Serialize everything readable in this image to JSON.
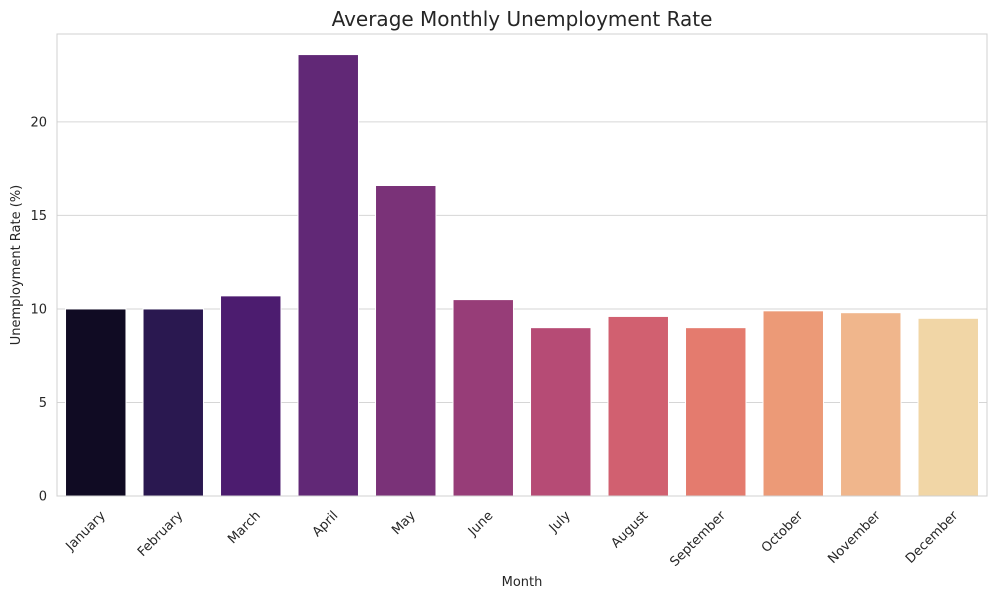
{
  "chart_data": {
    "type": "bar",
    "title": "Average Monthly Unemployment Rate",
    "xlabel": "Month",
    "ylabel": "Unemployment Rate (%)",
    "categories": [
      "January",
      "February",
      "March",
      "April",
      "May",
      "June",
      "July",
      "August",
      "September",
      "October",
      "November",
      "December"
    ],
    "values": [
      10.0,
      10.0,
      10.7,
      23.6,
      16.6,
      10.5,
      9.0,
      9.6,
      9.0,
      9.9,
      9.8,
      9.5
    ],
    "colors": [
      "#100b23",
      "#2a1850",
      "#4c1c6f",
      "#612876",
      "#7a3278",
      "#973d78",
      "#b64b75",
      "#d16070",
      "#e47b6e",
      "#ec9a77",
      "#f0b68c",
      "#f1d6a6"
    ],
    "ylim": [
      0,
      24.7
    ],
    "yticks": [
      0,
      5,
      10,
      15,
      20
    ],
    "grid": true,
    "grid_axis": "y",
    "legend": "none"
  }
}
